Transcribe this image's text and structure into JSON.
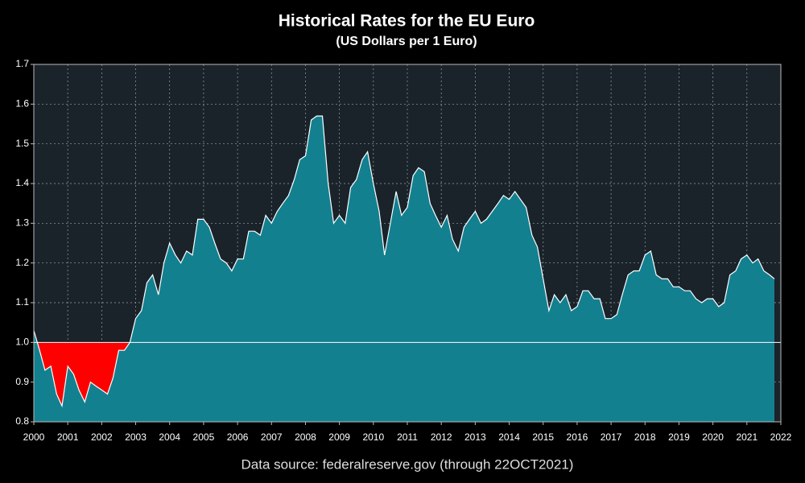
{
  "chart_data": {
    "type": "area",
    "title": "Historical Rates for the EU Euro",
    "subtitle": "(US Dollars per 1 Euro)",
    "source_note": "Data source: federalreserve.gov (through 22OCT2021)",
    "color": "#13808f",
    "below_color": "#ff0000",
    "line_color": "#ffffff",
    "reference": 1,
    "grid": true,
    "xlim": [
      2000,
      2022
    ],
    "ylim": [
      0.8,
      1.7
    ],
    "xticks": [
      2000,
      2001,
      2002,
      2003,
      2004,
      2005,
      2006,
      2007,
      2008,
      2009,
      2010,
      2011,
      2012,
      2013,
      2014,
      2015,
      2016,
      2017,
      2018,
      2019,
      2020,
      2021,
      2022
    ],
    "yticks": [
      0.8,
      0.9,
      {
        "value": 1,
        "label": "1.0"
      },
      1.1,
      1.2,
      1.3,
      1.4,
      1.5,
      1.6,
      1.7
    ],
    "x": [
      2000,
      2000.17,
      2000.33,
      2000.5,
      2000.67,
      2000.83,
      2001,
      2001.17,
      2001.33,
      2001.5,
      2001.67,
      2001.83,
      2002,
      2002.17,
      2002.33,
      2002.5,
      2002.67,
      2002.83,
      2003,
      2003.17,
      2003.33,
      2003.5,
      2003.67,
      2003.83,
      2004,
      2004.17,
      2004.33,
      2004.5,
      2004.67,
      2004.83,
      2005,
      2005.17,
      2005.33,
      2005.5,
      2005.67,
      2005.83,
      2006,
      2006.17,
      2006.33,
      2006.5,
      2006.67,
      2006.83,
      2007,
      2007.17,
      2007.33,
      2007.5,
      2007.67,
      2007.83,
      2008,
      2008.17,
      2008.33,
      2008.5,
      2008.67,
      2008.83,
      2009,
      2009.17,
      2009.33,
      2009.5,
      2009.67,
      2009.83,
      2010,
      2010.17,
      2010.33,
      2010.5,
      2010.67,
      2010.83,
      2011,
      2011.17,
      2011.33,
      2011.5,
      2011.67,
      2011.83,
      2012,
      2012.17,
      2012.33,
      2012.5,
      2012.67,
      2012.83,
      2013,
      2013.17,
      2013.33,
      2013.5,
      2013.67,
      2013.83,
      2014,
      2014.17,
      2014.33,
      2014.5,
      2014.67,
      2014.83,
      2015,
      2015.17,
      2015.33,
      2015.5,
      2015.67,
      2015.83,
      2016,
      2016.17,
      2016.33,
      2016.5,
      2016.67,
      2016.83,
      2017,
      2017.17,
      2017.33,
      2017.5,
      2017.67,
      2017.83,
      2018,
      2018.17,
      2018.33,
      2018.5,
      2018.67,
      2018.83,
      2019,
      2019.17,
      2019.33,
      2019.5,
      2019.67,
      2019.83,
      2020,
      2020.17,
      2020.33,
      2020.5,
      2020.67,
      2020.83,
      2021,
      2021.17,
      2021.33,
      2021.5,
      2021.67,
      2021.81
    ],
    "values": [
      1.03,
      0.98,
      0.93,
      0.94,
      0.87,
      0.84,
      0.94,
      0.92,
      0.88,
      0.85,
      0.9,
      0.89,
      0.88,
      0.87,
      0.91,
      0.98,
      0.98,
      1.0,
      1.06,
      1.08,
      1.15,
      1.17,
      1.12,
      1.2,
      1.25,
      1.22,
      1.2,
      1.23,
      1.22,
      1.31,
      1.31,
      1.29,
      1.25,
      1.21,
      1.2,
      1.18,
      1.21,
      1.21,
      1.28,
      1.28,
      1.27,
      1.32,
      1.3,
      1.33,
      1.35,
      1.37,
      1.41,
      1.46,
      1.47,
      1.56,
      1.57,
      1.57,
      1.4,
      1.3,
      1.32,
      1.3,
      1.39,
      1.41,
      1.46,
      1.48,
      1.4,
      1.33,
      1.22,
      1.3,
      1.38,
      1.32,
      1.34,
      1.42,
      1.44,
      1.43,
      1.35,
      1.32,
      1.29,
      1.32,
      1.26,
      1.23,
      1.29,
      1.31,
      1.33,
      1.3,
      1.31,
      1.33,
      1.35,
      1.37,
      1.36,
      1.38,
      1.36,
      1.34,
      1.27,
      1.24,
      1.16,
      1.08,
      1.12,
      1.1,
      1.12,
      1.08,
      1.09,
      1.13,
      1.13,
      1.11,
      1.11,
      1.06,
      1.06,
      1.07,
      1.12,
      1.17,
      1.18,
      1.18,
      1.22,
      1.23,
      1.17,
      1.16,
      1.16,
      1.14,
      1.14,
      1.13,
      1.13,
      1.11,
      1.1,
      1.11,
      1.11,
      1.09,
      1.1,
      1.17,
      1.18,
      1.21,
      1.22,
      1.2,
      1.21,
      1.18,
      1.17,
      1.16
    ]
  }
}
